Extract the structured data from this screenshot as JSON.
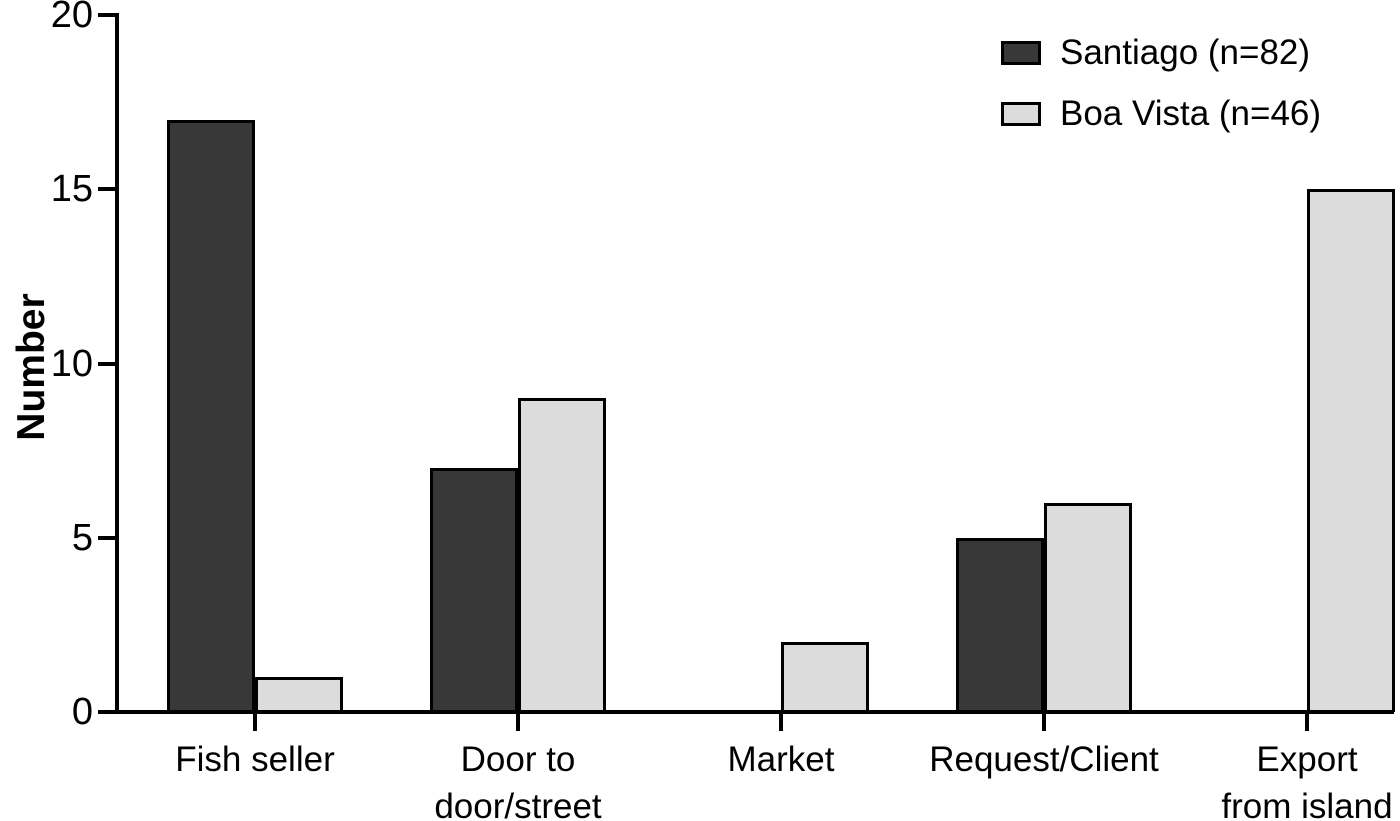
{
  "chart_data": {
    "type": "bar",
    "categories": [
      "Fish seller",
      "Door to\ndoor/street",
      "Market",
      "Request/Client",
      "Export\nfrom island"
    ],
    "series": [
      {
        "name": "Santiago (n=82)",
        "color": "#383838",
        "values": [
          17,
          7,
          0,
          5,
          0
        ]
      },
      {
        "name": "Boa Vista (n=46)",
        "color": "#dcdcdc",
        "values": [
          1,
          9,
          2,
          6,
          15
        ]
      }
    ],
    "title": "",
    "xlabel": "",
    "ylabel": "Number",
    "ylim": [
      0,
      20
    ],
    "yticks": [
      0,
      5,
      10,
      15,
      20
    ],
    "grid": false,
    "legend_position": "top-right",
    "bar_border_color": "#000000",
    "axis_color": "#000000",
    "background_color": "#ffffff"
  }
}
